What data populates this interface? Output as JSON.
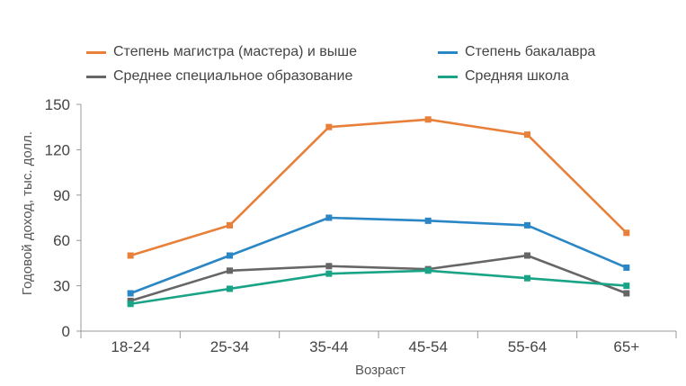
{
  "chart_data": {
    "type": "line",
    "categories": [
      "18-24",
      "25-34",
      "35-44",
      "45-54",
      "55-64",
      "65+"
    ],
    "series": [
      {
        "name": "Степень магистра (мастера) и выше",
        "color": "#e8803a",
        "values": [
          50,
          70,
          135,
          140,
          130,
          65
        ]
      },
      {
        "name": "Степень бакалавра",
        "color": "#2a86c5",
        "values": [
          25,
          50,
          75,
          73,
          70,
          42
        ]
      },
      {
        "name": "Среднее специальное образование",
        "color": "#666666",
        "values": [
          20,
          40,
          43,
          41,
          50,
          25
        ]
      },
      {
        "name": "Средняя школа",
        "color": "#1aa487",
        "values": [
          18,
          28,
          38,
          40,
          35,
          30
        ]
      }
    ],
    "xlabel": "Возраст",
    "ylabel": "Годовой доход, тыс. долл.",
    "ylim": [
      0,
      150
    ],
    "yticks": [
      0,
      30,
      60,
      90,
      120,
      150
    ],
    "grid": false,
    "legend_position": "top"
  }
}
